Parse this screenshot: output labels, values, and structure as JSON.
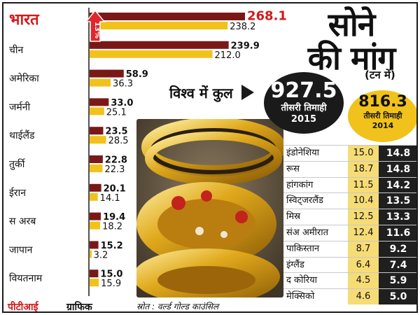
{
  "chart_data": {
    "type": "bar",
    "title": "सोने की मांग",
    "unit": "(टन में)",
    "categories": [
      "भारत",
      "चीन",
      "अमेरिका",
      "जर्मनी",
      "थाईलैंड",
      "तुर्की",
      "ईरान",
      "स अरब",
      "जापान",
      "वियतनाम"
    ],
    "series": [
      {
        "values": [
          268.1,
          239.9,
          58.9,
          33.0,
          23.5,
          22.8,
          20.1,
          19.4,
          15.2,
          15.0
        ],
        "labels": [
          "268.1",
          "239.9",
          "58.9",
          "33.0",
          "23.5",
          "22.8",
          "20.1",
          "19.4",
          "15.2",
          "15.0"
        ]
      },
      {
        "values": [
          238.2,
          212.0,
          36.3,
          25.1,
          28.5,
          22.3,
          14.1,
          18.2,
          3.2,
          15.9
        ],
        "labels": [
          "238.2",
          "212.0",
          "36.3",
          "25.1",
          "28.5",
          "22.3",
          "14.1",
          "18.2",
          "3.2",
          "15.9"
        ]
      }
    ],
    "highlight": {
      "category": "भारत",
      "badge": "13%"
    },
    "colors": {
      "series_2015": "#7a1818",
      "series_2014": "#f1c21b",
      "highlight_text": "#d11a1a",
      "badge": "#e3262d"
    }
  },
  "world": {
    "label": "विश्व में कुल",
    "total_2015": "927.5",
    "total_2015_sub_1": "तीसरी तिमाही",
    "total_2015_sub_2": "2015",
    "total_2014": "816.3",
    "total_2014_sub_1": "तीसरी तिमाही",
    "total_2014_sub_2": "2014"
  },
  "table": [
    {
      "country": "इंडोनेशिया",
      "v2015": "15.0",
      "v2014": "14.8"
    },
    {
      "country": "रूस",
      "v2015": "18.7",
      "v2014": "14.8"
    },
    {
      "country": "हांगकांग",
      "v2015": "11.5",
      "v2014": "14.2"
    },
    {
      "country": "स्विट्जरलैंड",
      "v2015": "10.4",
      "v2014": "13.5"
    },
    {
      "country": "मिस्र",
      "v2015": "12.5",
      "v2014": "13.3"
    },
    {
      "country": "संअ अमीरात",
      "v2015": "12.4",
      "v2014": "11.6"
    },
    {
      "country": "पाकिस्तान",
      "v2015": "8.7",
      "v2014": "9.2"
    },
    {
      "country": "इंग्लैंड",
      "v2015": "6.4",
      "v2014": "7.4"
    },
    {
      "country": "द कोरिया",
      "v2015": "4.5",
      "v2014": "5.9"
    },
    {
      "country": "मेक्सिको",
      "v2015": "4.6",
      "v2014": "5.0"
    }
  ],
  "footer": {
    "credit": "पीटीआई",
    "credit_suffix": "ग्राफिक",
    "source": "स्रोत : वर्ल्ड गोल्ड काउंसिल"
  }
}
